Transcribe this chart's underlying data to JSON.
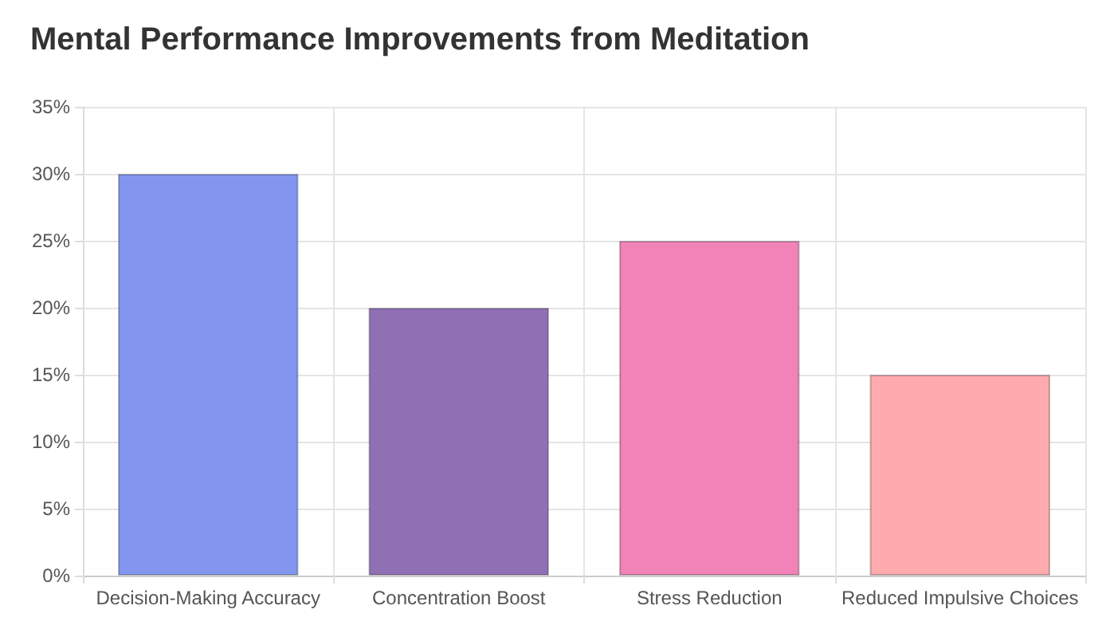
{
  "chart_data": {
    "type": "bar",
    "title": "Mental Performance Improvements from Meditation",
    "categories": [
      "Decision-Making Accuracy",
      "Concentration Boost",
      "Stress Reduction",
      "Reduced Impulsive Choices"
    ],
    "values": [
      30,
      20,
      25,
      15
    ],
    "colors": [
      "#8396ef",
      "#9070b5",
      "#f183b8",
      "#ffaaae"
    ],
    "ylim": [
      0,
      35
    ],
    "yticks": [
      {
        "value": 0,
        "label": "0%"
      },
      {
        "value": 5,
        "label": "5%"
      },
      {
        "value": 10,
        "label": "10%"
      },
      {
        "value": 15,
        "label": "15%"
      },
      {
        "value": 20,
        "label": "20%"
      },
      {
        "value": 25,
        "label": "25%"
      },
      {
        "value": 30,
        "label": "30%"
      },
      {
        "value": 35,
        "label": "35%"
      }
    ],
    "grid": true
  }
}
